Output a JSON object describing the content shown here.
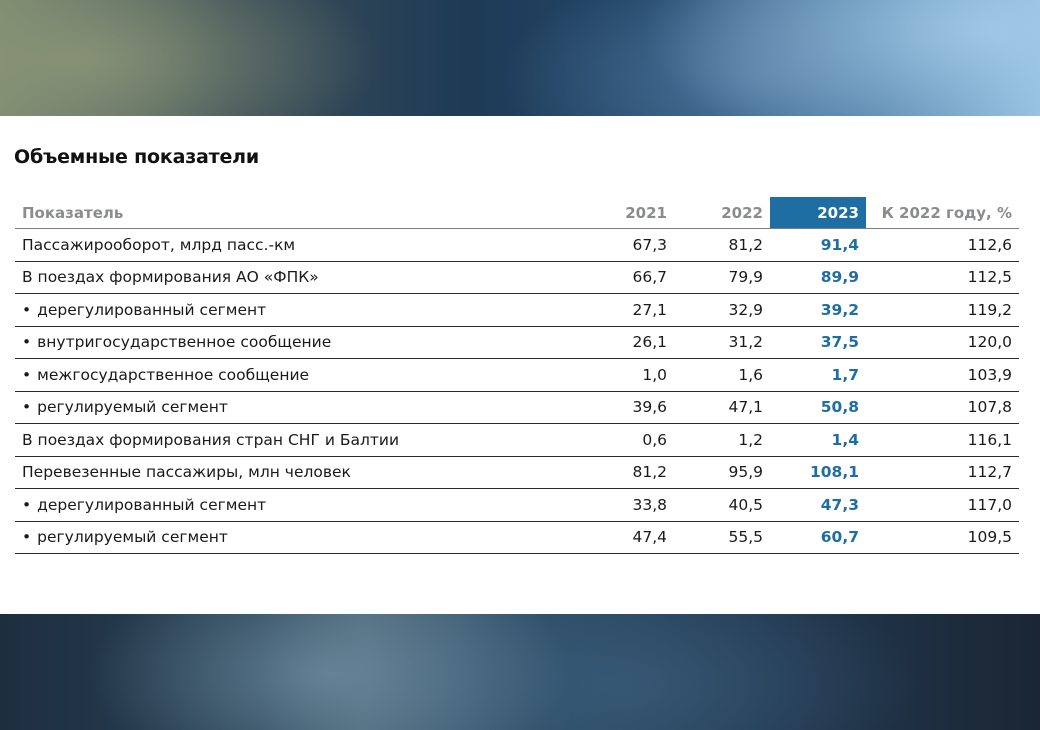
{
  "title": "Объемные показатели",
  "table": {
    "headers": [
      "Показатель",
      "2021",
      "2022",
      "2023",
      "К 2022 году, %"
    ],
    "highlight_color": "#1f6ea3",
    "rows": [
      {
        "label": "Пассажирооборот, млрд пасс.-км",
        "bullet": "",
        "v2021": "67,3",
        "v2022": "81,2",
        "v2023": "91,4",
        "pct": "112,6"
      },
      {
        "label": "В поездах формирования АО «ФПК»",
        "bullet": "",
        "v2021": "66,7",
        "v2022": "79,9",
        "v2023": "89,9",
        "pct": "112,5"
      },
      {
        "label": "дерегулированный сегмент",
        "bullet": "•",
        "v2021": "27,1",
        "v2022": "32,9",
        "v2023": "39,2",
        "pct": "119,2"
      },
      {
        "label": "внутригосударственное сообщение",
        "bullet": "•",
        "v2021": "26,1",
        "v2022": "31,2",
        "v2023": "37,5",
        "pct": "120,0"
      },
      {
        "label": "межгосударственное сообщение",
        "bullet": "•",
        "v2021": "1,0",
        "v2022": "1,6",
        "v2023": "1,7",
        "pct": "103,9"
      },
      {
        "label": "регулируемый сегмент",
        "bullet": "•",
        "v2021": "39,6",
        "v2022": "47,1",
        "v2023": "50,8",
        "pct": "107,8"
      },
      {
        "label": "В поездах формирования стран СНГ и Балтии",
        "bullet": "",
        "v2021": "0,6",
        "v2022": "1,2",
        "v2023": "1,4",
        "pct": "116,1"
      },
      {
        "label": "Перевезенные пассажиры, млн человек",
        "bullet": "",
        "v2021": "81,2",
        "v2022": "95,9",
        "v2023": "108,1",
        "pct": "112,7"
      },
      {
        "label": "дерегулированный сегмент",
        "bullet": "•",
        "v2021": "33,8",
        "v2022": "40,5",
        "v2023": "47,3",
        "pct": "117,0"
      },
      {
        "label": "регулируемый сегмент",
        "bullet": "•",
        "v2021": "47,4",
        "v2022": "55,5",
        "v2023": "60,7",
        "pct": "109,5"
      }
    ]
  }
}
